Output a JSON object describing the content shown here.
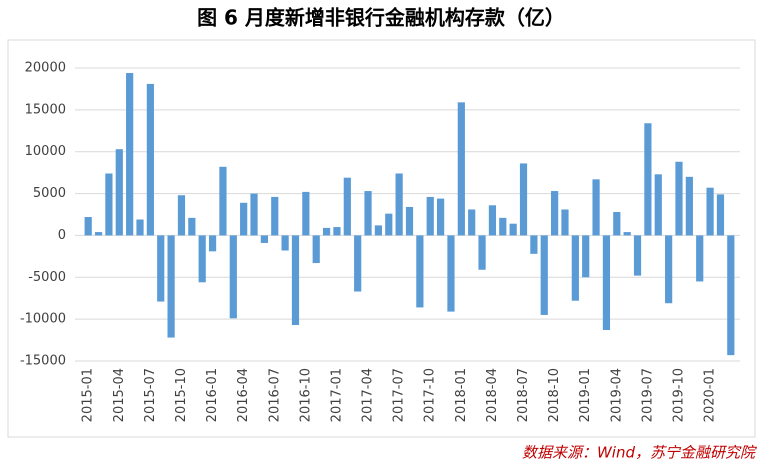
{
  "chart_data": {
    "type": "bar",
    "title": "图 6 月度新增非银行金融机构存款（亿）",
    "source": "数据来源：Wind，苏宁金融研究院",
    "color": "#5b9bd5",
    "grid": true,
    "ylim": [
      -15000,
      20000
    ],
    "yticks": [
      -15000,
      -10000,
      -5000,
      0,
      5000,
      10000,
      15000,
      20000
    ],
    "categories": [
      "2015-01",
      null,
      null,
      "2015-04",
      null,
      null,
      "2015-07",
      null,
      null,
      "2015-10",
      null,
      null,
      "2016-01",
      null,
      null,
      "2016-04",
      null,
      null,
      "2016-07",
      null,
      null,
      "2016-10",
      null,
      null,
      "2017-01",
      null,
      null,
      "2017-04",
      null,
      null,
      "2017-07",
      null,
      null,
      "2017-10",
      null,
      null,
      "2018-01",
      null,
      null,
      "2018-04",
      null,
      null,
      "2018-07",
      null,
      null,
      "2018-10",
      null,
      null,
      "2019-01",
      null,
      null,
      "2019-04",
      null,
      null,
      "2019-07",
      null,
      null,
      "2019-10",
      null,
      null,
      "2020-01",
      null,
      null
    ],
    "values": [
      2200,
      400,
      7400,
      10300,
      19400,
      1900,
      18100,
      -7900,
      -12200,
      4800,
      2100,
      -5600,
      -1900,
      8200,
      -9900,
      3900,
      5000,
      -900,
      4600,
      -1800,
      -10700,
      5200,
      -3300,
      900,
      1000,
      6900,
      -6700,
      5300,
      1200,
      2600,
      7400,
      3400,
      -8600,
      4600,
      4400,
      -9100,
      15900,
      3100,
      -4100,
      3600,
      2100,
      1400,
      8600,
      -2200,
      -9500,
      5300,
      3100,
      -7800,
      -5000,
      6700,
      -11300,
      2800,
      400,
      -4800,
      13400,
      7300,
      -8100,
      8800,
      7000,
      -5500,
      5700,
      4900,
      -14300
    ]
  }
}
